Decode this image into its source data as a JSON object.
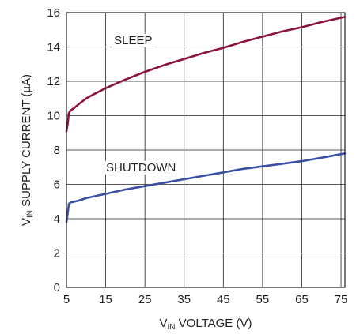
{
  "chart_data": {
    "type": "line",
    "title": "",
    "xlabel": {
      "prefix": "V",
      "subscript": "IN",
      "suffix": " VOLTAGE (V)"
    },
    "ylabel": {
      "prefix": "V",
      "subscript": "IN",
      "suffix": " SUPPLY CURRENT (µA)"
    },
    "xlim": [
      5,
      76
    ],
    "ylim": [
      0,
      16
    ],
    "xticks": [
      5,
      15,
      25,
      35,
      45,
      55,
      65,
      75
    ],
    "yticks": [
      0,
      2,
      4,
      6,
      8,
      10,
      12,
      14,
      16
    ],
    "grid": true,
    "legend": "none",
    "series": [
      {
        "name": "SLEEP",
        "color": "#8b1538",
        "label_at": [
          22,
          14.4
        ],
        "x": [
          5,
          5.3,
          5.6,
          6,
          7,
          8,
          10,
          12,
          15,
          20,
          25,
          30,
          35,
          40,
          45,
          50,
          55,
          60,
          65,
          70,
          76
        ],
        "y": [
          9.1,
          9.5,
          10.15,
          10.3,
          10.45,
          10.65,
          11.0,
          11.25,
          11.6,
          12.1,
          12.55,
          12.95,
          13.3,
          13.65,
          13.95,
          14.3,
          14.6,
          14.9,
          15.15,
          15.45,
          15.75
        ]
      },
      {
        "name": "SHUTDOWN",
        "color": "#3a4ea3",
        "label_at": [
          24,
          7.0
        ],
        "x": [
          5,
          5.3,
          5.6,
          6,
          8,
          10,
          15,
          20,
          25,
          30,
          35,
          40,
          45,
          50,
          55,
          60,
          65,
          70,
          76
        ],
        "y": [
          3.8,
          4.3,
          4.85,
          4.95,
          5.05,
          5.2,
          5.45,
          5.7,
          5.9,
          6.1,
          6.3,
          6.5,
          6.7,
          6.9,
          7.05,
          7.2,
          7.35,
          7.55,
          7.8
        ]
      }
    ]
  }
}
